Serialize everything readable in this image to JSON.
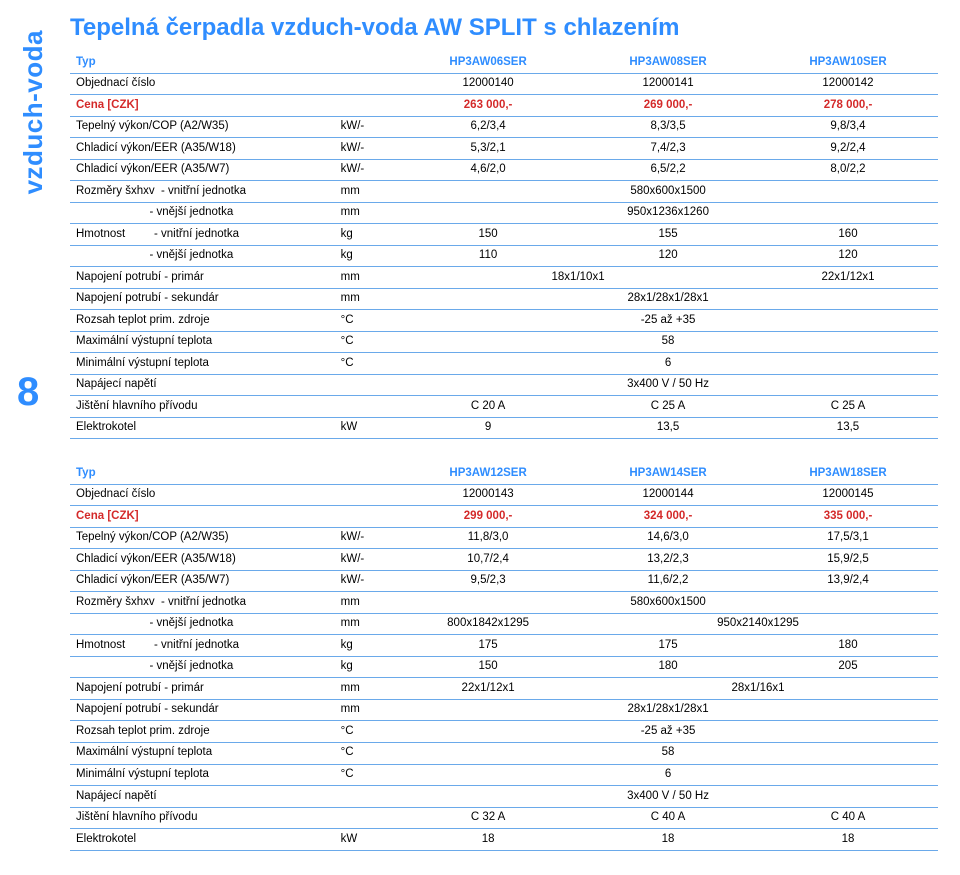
{
  "page": {
    "number": "8",
    "sidebar": "vzduch-voda"
  },
  "title": "Tepelná čerpadla vzduch-voda AW SPLIT s chlazením",
  "colors": {
    "accent": "#2f8dff",
    "price": "#d42a2a",
    "border": "#6aa9ea",
    "text": "#000000",
    "bg": "#ffffff"
  },
  "t1": {
    "h": {
      "type": "Typ",
      "c1": "HP3AW06SER",
      "c2": "HP3AW08SER",
      "c3": "HP3AW10SER"
    },
    "order": {
      "l": "Objednací číslo",
      "u": "",
      "v": [
        "12000140",
        "12000141",
        "12000142"
      ]
    },
    "price": {
      "l": "Cena [CZK]",
      "u": "",
      "v": [
        "263 000,-",
        "269 000,-",
        "278 000,-"
      ]
    },
    "cop": {
      "l": "Tepelný výkon/COP (A2/W35)",
      "u": "kW/-",
      "v": [
        "6,2/3,4",
        "8,3/3,5",
        "9,8/3,4"
      ]
    },
    "eer18": {
      "l": "Chladicí výkon/EER (A35/W18)",
      "u": "kW/-",
      "v": [
        "5,3/2,1",
        "7,4/2,3",
        "9,2/2,4"
      ]
    },
    "eer7": {
      "l": "Chladicí výkon/EER (A35/W7)",
      "u": "kW/-",
      "v": [
        "4,6/2,0",
        "6,5/2,2",
        "8,0/2,2"
      ]
    },
    "dim_in": {
      "l": "Rozměry šxhxv  - vnitřní jednotka",
      "u": "mm",
      "val": "580x600x1500"
    },
    "dim_out": {
      "l": "                       - vnější jednotka",
      "u": "mm",
      "val": "950x1236x1260"
    },
    "wt_in": {
      "l": "Hmotnost         - vnitřní jednotka",
      "u": "kg",
      "v": [
        "150",
        "155",
        "160"
      ]
    },
    "wt_out": {
      "l": "                       - vnější jednotka",
      "u": "kg",
      "v": [
        "110",
        "120",
        "120"
      ]
    },
    "pipe_p": {
      "l": "Napojení potrubí - primár",
      "u": "mm",
      "v12": "18x1/10x1",
      "v3": "22x1/12x1"
    },
    "pipe_s": {
      "l": "Napojení potrubí - sekundár",
      "u": "mm",
      "val": "28x1/28x1/28x1"
    },
    "temp_r": {
      "l": "Rozsah teplot prim. zdroje",
      "u": "°C",
      "val": "-25 až +35"
    },
    "t_max": {
      "l": "Maximální výstupní teplota",
      "u": "°C",
      "val": "58"
    },
    "t_min": {
      "l": "Minimální výstupní teplota",
      "u": "°C",
      "val": "6"
    },
    "volt": {
      "l": "Napájecí napětí",
      "u": "",
      "val": "3x400 V / 50 Hz"
    },
    "fuse": {
      "l": "Jištění hlavního přívodu",
      "u": "",
      "v": [
        "C 20 A",
        "C 25 A",
        "C 25 A"
      ]
    },
    "heater": {
      "l": "Elektrokotel",
      "u": "kW",
      "v": [
        "9",
        "13,5",
        "13,5"
      ]
    }
  },
  "t2": {
    "h": {
      "type": "Typ",
      "c1": "HP3AW12SER",
      "c2": "HP3AW14SER",
      "c3": "HP3AW18SER"
    },
    "order": {
      "l": "Objednací číslo",
      "u": "",
      "v": [
        "12000143",
        "12000144",
        "12000145"
      ]
    },
    "price": {
      "l": "Cena [CZK]",
      "u": "",
      "v": [
        "299 000,-",
        "324 000,-",
        "335 000,-"
      ]
    },
    "cop": {
      "l": "Tepelný výkon/COP (A2/W35)",
      "u": "kW/-",
      "v": [
        "11,8/3,0",
        "14,6/3,0",
        "17,5/3,1"
      ]
    },
    "eer18": {
      "l": "Chladicí výkon/EER (A35/W18)",
      "u": "kW/-",
      "v": [
        "10,7/2,4",
        "13,2/2,3",
        "15,9/2,5"
      ]
    },
    "eer7": {
      "l": "Chladicí výkon/EER (A35/W7)",
      "u": "kW/-",
      "v": [
        "9,5/2,3",
        "11,6/2,2",
        "13,9/2,4"
      ]
    },
    "dim_in": {
      "l": "Rozměry šxhxv  - vnitřní jednotka",
      "u": "mm",
      "val": "580x600x1500"
    },
    "dim_out": {
      "l": "                       - vnější jednotka",
      "u": "mm",
      "v1": "800x1842x1295",
      "v23": "950x2140x1295"
    },
    "wt_in": {
      "l": "Hmotnost         - vnitřní jednotka",
      "u": "kg",
      "v": [
        "175",
        "175",
        "180"
      ]
    },
    "wt_out": {
      "l": "                       - vnější jednotka",
      "u": "kg",
      "v": [
        "150",
        "180",
        "205"
      ]
    },
    "pipe_p": {
      "l": "Napojení potrubí - primár",
      "u": "mm",
      "v1": "22x1/12x1",
      "v23": "28x1/16x1"
    },
    "pipe_s": {
      "l": "Napojení potrubí - sekundár",
      "u": "mm",
      "val": "28x1/28x1/28x1"
    },
    "temp_r": {
      "l": "Rozsah teplot prim. zdroje",
      "u": "°C",
      "val": "-25 až +35"
    },
    "t_max": {
      "l": "Maximální výstupní teplota",
      "u": "°C",
      "val": "58"
    },
    "t_min": {
      "l": "Minimální výstupní teplota",
      "u": "°C",
      "val": "6"
    },
    "volt": {
      "l": "Napájecí napětí",
      "u": "",
      "val": "3x400 V / 50 Hz"
    },
    "fuse": {
      "l": "Jištění hlavního přívodu",
      "u": "",
      "v": [
        "C 32 A",
        "C 40 A",
        "C 40 A"
      ]
    },
    "heater": {
      "l": "Elektrokotel",
      "u": "kW",
      "v": [
        "18",
        "18",
        "18"
      ]
    }
  }
}
